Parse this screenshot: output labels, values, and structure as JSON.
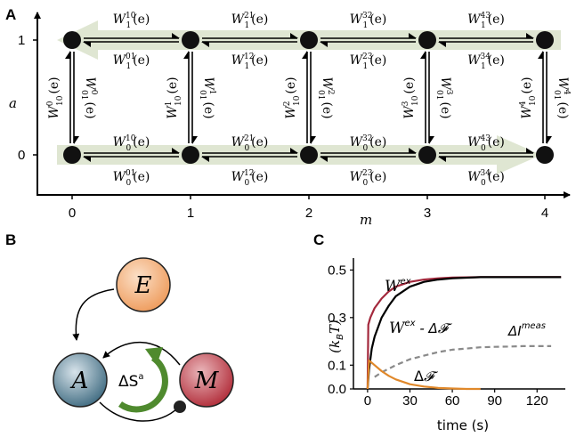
{
  "panel_a": {
    "letter": "A",
    "x_axis_label": "m",
    "y_axis_label": "a",
    "x_ticks": [
      "0",
      "1",
      "2",
      "3",
      "4"
    ],
    "y_ticks": [
      "0",
      "1"
    ],
    "top_forward_rates": [
      {
        "base": "W",
        "sub": "1",
        "sup": "10",
        "arg": "(e)"
      },
      {
        "base": "W",
        "sub": "1",
        "sup": "21",
        "arg": "(e)"
      },
      {
        "base": "W",
        "sub": "1",
        "sup": "32",
        "arg": "(e)"
      },
      {
        "base": "W",
        "sub": "1",
        "sup": "43",
        "arg": "(e)"
      }
    ],
    "top_backward_rates": [
      {
        "base": "W",
        "sub": "1",
        "sup": "01",
        "arg": "(e)"
      },
      {
        "base": "W",
        "sub": "1",
        "sup": "12",
        "arg": "(e)"
      },
      {
        "base": "W",
        "sub": "1",
        "sup": "23",
        "arg": "(e)"
      },
      {
        "base": "W",
        "sub": "1",
        "sup": "34",
        "arg": "(e)"
      }
    ],
    "bottom_forward_rates": [
      {
        "base": "W",
        "sub": "0",
        "sup": "10",
        "arg": "(e)"
      },
      {
        "base": "W",
        "sub": "0",
        "sup": "21",
        "arg": "(e)"
      },
      {
        "base": "W",
        "sub": "0",
        "sup": "32",
        "arg": "(e)"
      },
      {
        "base": "W",
        "sub": "0",
        "sup": "43",
        "arg": "(e)"
      }
    ],
    "bottom_backward_rates": [
      {
        "base": "W",
        "sub": "0",
        "sup": "01",
        "arg": "(e)"
      },
      {
        "base": "W",
        "sub": "0",
        "sup": "12",
        "arg": "(e)"
      },
      {
        "base": "W",
        "sub": "0",
        "sup": "23",
        "arg": "(e)"
      },
      {
        "base": "W",
        "sub": "0",
        "sup": "34",
        "arg": "(e)"
      }
    ],
    "vertical_up_rates": [
      {
        "base": "W",
        "sub": "10",
        "sup": "0",
        "arg": "(e)"
      },
      {
        "base": "W",
        "sub": "10",
        "sup": "1",
        "arg": "(e)"
      },
      {
        "base": "W",
        "sub": "10",
        "sup": "2",
        "arg": "(e)"
      },
      {
        "base": "W",
        "sub": "10",
        "sup": "3",
        "arg": "(e)"
      },
      {
        "base": "W",
        "sub": "10",
        "sup": "4",
        "arg": "(e)"
      }
    ],
    "vertical_down_rates": [
      {
        "base": "W",
        "sub": "01",
        "sup": "0",
        "arg": "(e)"
      },
      {
        "base": "W",
        "sub": "01",
        "sup": "1",
        "arg": "(e)"
      },
      {
        "base": "W",
        "sub": "01",
        "sup": "2",
        "arg": "(e)"
      },
      {
        "base": "W",
        "sub": "01",
        "sup": "3",
        "arg": "(e)"
      },
      {
        "base": "W",
        "sub": "01",
        "sup": "4",
        "arg": "(e)"
      }
    ],
    "highlight_color": "#dfe6d2",
    "node_color": "#111111"
  },
  "panel_b": {
    "letter": "B",
    "nodes": [
      {
        "label": "E",
        "color": "#f0a368"
      },
      {
        "label": "A",
        "color": "#3e6a80"
      },
      {
        "label": "M",
        "color": "#b8323d"
      }
    ],
    "cycle_label": "ΔS",
    "cycle_label_sup": "a",
    "cycle_color": "#4f8a2e"
  },
  "panel_c": {
    "letter": "C",
    "ylabel_main": "(k",
    "ylabel_sub": "B",
    "ylabel_end": "T)",
    "xlabel": "time (s)",
    "label_w": "W",
    "label_w_sup": "ex",
    "label_w_minus_main": "W",
    "label_w_minus_sup": "ex",
    "label_w_minus_tail": " - Δ",
    "label_w_minus_script": "𝓕",
    "label_i_main": "ΔI",
    "label_i_sup": "meas",
    "label_f_main": "Δ",
    "label_f_script": "𝓕"
  },
  "chart_data": {
    "type": "line",
    "xlabel": "time (s)",
    "ylabel": "(kB T)",
    "xlim": [
      -10,
      140
    ],
    "ylim": [
      0,
      0.55
    ],
    "x_ticks": [
      0,
      30,
      60,
      90,
      120
    ],
    "y_ticks": [
      0.0,
      0.1,
      0.3,
      0.5
    ],
    "x_tick_labels": [
      "0",
      "30",
      "60",
      "90",
      "120"
    ],
    "y_tick_labels": [
      "0.0",
      "0.1",
      "0.3",
      "0.5"
    ],
    "grid": false,
    "series": [
      {
        "name": "W ex",
        "color": "#a3283c",
        "x": [
          0,
          0.5,
          2,
          5,
          10,
          15,
          20,
          30,
          40,
          50,
          60,
          80,
          100,
          120,
          137
        ],
        "y": [
          0.0,
          0.27,
          0.3,
          0.34,
          0.38,
          0.41,
          0.43,
          0.45,
          0.46,
          0.465,
          0.468,
          0.47,
          0.47,
          0.47,
          0.47
        ],
        "dash": "solid"
      },
      {
        "name": "W ex - ΔF",
        "color": "#000000",
        "x": [
          0,
          1,
          3,
          5,
          10,
          15,
          20,
          30,
          40,
          50,
          60,
          80,
          100,
          120,
          137
        ],
        "y": [
          0.0,
          0.08,
          0.17,
          0.22,
          0.3,
          0.35,
          0.39,
          0.43,
          0.45,
          0.46,
          0.465,
          0.47,
          0.47,
          0.47,
          0.47
        ],
        "dash": "solid"
      },
      {
        "name": "ΔI meas",
        "color": "#8a8a8a",
        "x": [
          5,
          10,
          20,
          30,
          40,
          50,
          60,
          70,
          80,
          90,
          100,
          110,
          120,
          130
        ],
        "y": [
          0.05,
          0.07,
          0.1,
          0.125,
          0.14,
          0.155,
          0.165,
          0.17,
          0.175,
          0.177,
          0.178,
          0.18,
          0.18,
          0.18
        ],
        "dash": "dashed"
      },
      {
        "name": "ΔF",
        "color": "#e0882a",
        "x": [
          0,
          1,
          3,
          5,
          10,
          15,
          20,
          30,
          40,
          50,
          60,
          70,
          80
        ],
        "y": [
          0.0,
          0.12,
          0.11,
          0.1,
          0.075,
          0.055,
          0.04,
          0.02,
          0.01,
          0.004,
          0.002,
          0.0,
          0.0
        ],
        "dash": "solid"
      }
    ]
  }
}
